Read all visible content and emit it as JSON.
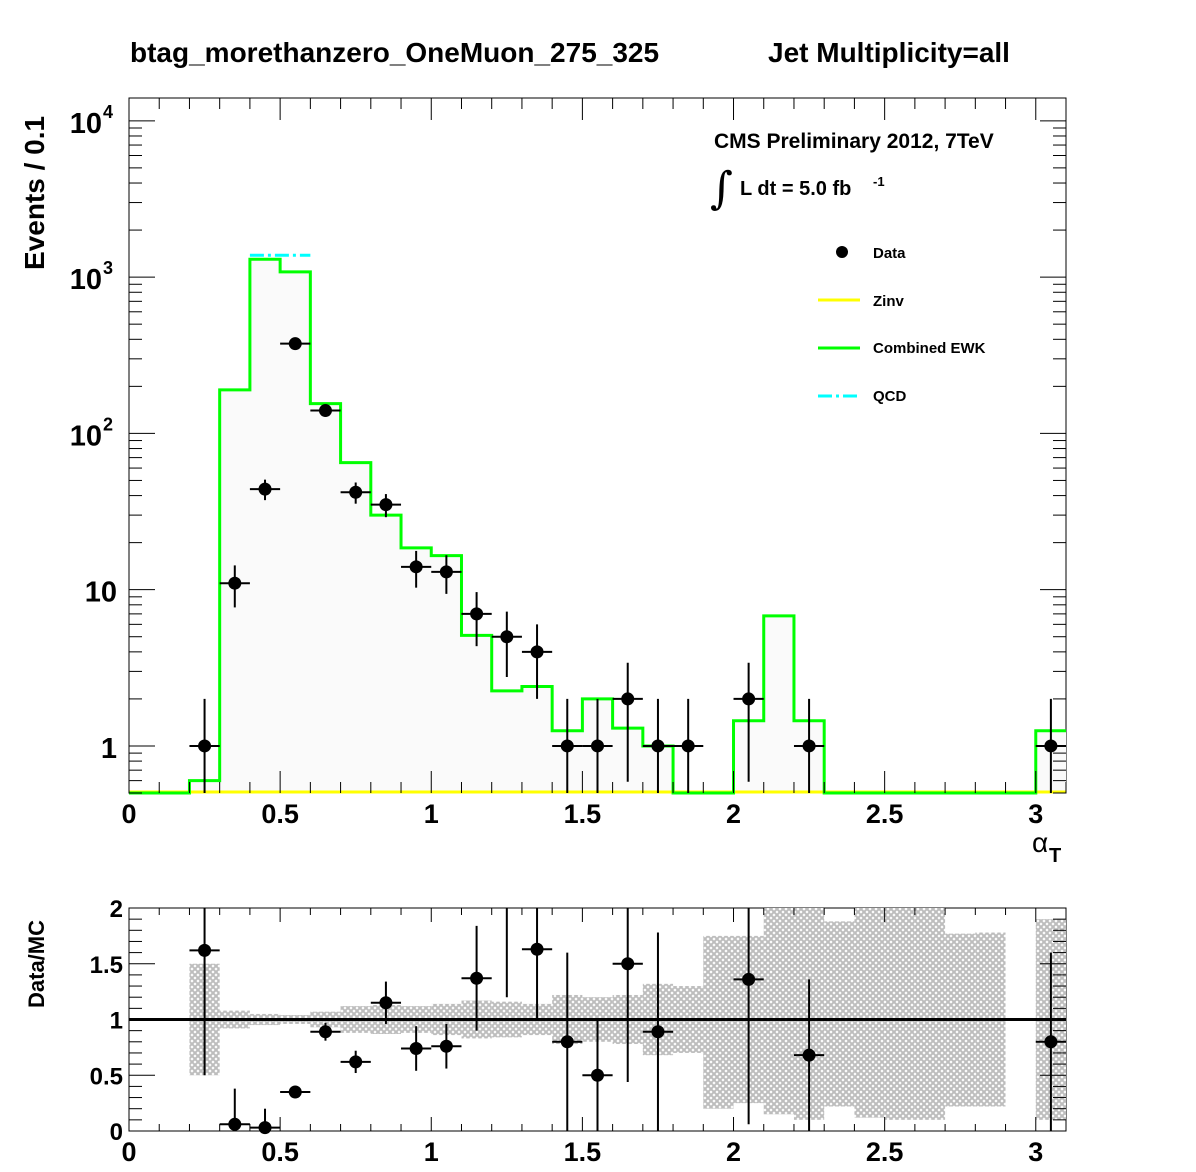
{
  "title": "btag_morethanzero_OneMuon_275_325",
  "subtitle": "Jet Multiplicity=all",
  "annotations": {
    "cms": "CMS Preliminary 2012, 7TeV",
    "lumi_integral": "∫",
    "lumi": "L dt = 5.0 fb",
    "lumi_exp": "-1"
  },
  "colors": {
    "zinv": "#ffff00",
    "ewk": "#00ff00",
    "qcd": "#00ffff",
    "data": "#000000",
    "band": "#bdbdbd"
  },
  "chart_data": [
    {
      "type": "histogram",
      "xlabel": "α",
      "xlabel_sub": "T",
      "ylabel": "Events / 0.1",
      "log_y": true,
      "xlim": [
        0,
        3.1
      ],
      "ylim": [
        0.5,
        14000
      ],
      "x_ticks": [
        "0",
        "0.5",
        "1",
        "1.5",
        "2",
        "2.5",
        "3"
      ],
      "y_ticks": [
        {
          "value": 1,
          "base": "1",
          "exp": ""
        },
        {
          "value": 10,
          "base": "10",
          "exp": ""
        },
        {
          "value": 100,
          "base": "10",
          "exp": "2"
        },
        {
          "value": 1000,
          "base": "10",
          "exp": "3"
        },
        {
          "value": 10000,
          "base": "10",
          "exp": "4"
        }
      ],
      "legend": {
        "placement": "top-right",
        "entries": [
          {
            "label": "Data",
            "style": "marker"
          },
          {
            "label": "Zinv",
            "style": "line",
            "color": "#ffff00"
          },
          {
            "label": "Combined EWK",
            "style": "line",
            "color": "#00ff00"
          },
          {
            "label": "QCD",
            "style": "dashdot",
            "color": "#00ffff"
          }
        ]
      },
      "bin_width": 0.1,
      "series": [
        {
          "name": "Combined EWK",
          "bin_edges_start": 0.0,
          "values": [
            0,
            0,
            0.6,
            190,
            1300,
            1080,
            155,
            65,
            30,
            18.5,
            16.5,
            5.1,
            2.25,
            2.4,
            1.25,
            2.0,
            1.3,
            1.0,
            0,
            0,
            1.45,
            6.8,
            1.45,
            0,
            0,
            0,
            0,
            0,
            0,
            0,
            1.25
          ]
        },
        {
          "name": "QCD",
          "bin_edges_start": 0.4,
          "values": [
            1380,
            1380
          ]
        },
        {
          "name": "Zinv",
          "bin_edges_start": 0.0,
          "values": [
            0
          ]
        }
      ],
      "data_points": [
        {
          "x": 0.25,
          "y": 1,
          "ylo": 0,
          "yhi": 2
        },
        {
          "x": 0.35,
          "y": 11,
          "ylo": 7.7,
          "yhi": 14.3
        },
        {
          "x": 0.45,
          "y": 44,
          "ylo": 37.4,
          "yhi": 50.6
        },
        {
          "x": 0.55,
          "y": 375,
          "ylo": 356,
          "yhi": 394
        },
        {
          "x": 0.65,
          "y": 140,
          "ylo": 128,
          "yhi": 152
        },
        {
          "x": 0.75,
          "y": 42,
          "ylo": 35.5,
          "yhi": 48.5
        },
        {
          "x": 0.85,
          "y": 35,
          "ylo": 29.1,
          "yhi": 40.9
        },
        {
          "x": 0.95,
          "y": 14,
          "ylo": 10.3,
          "yhi": 17.7
        },
        {
          "x": 1.05,
          "y": 13,
          "ylo": 9.4,
          "yhi": 16.6
        },
        {
          "x": 1.15,
          "y": 7,
          "ylo": 4.35,
          "yhi": 9.65
        },
        {
          "x": 1.25,
          "y": 5,
          "ylo": 2.76,
          "yhi": 7.24
        },
        {
          "x": 1.35,
          "y": 4,
          "ylo": 2,
          "yhi": 6
        },
        {
          "x": 1.45,
          "y": 1,
          "ylo": 0,
          "yhi": 2
        },
        {
          "x": 1.55,
          "y": 1,
          "ylo": 0,
          "yhi": 2
        },
        {
          "x": 1.65,
          "y": 2,
          "ylo": 0.59,
          "yhi": 3.41
        },
        {
          "x": 1.75,
          "y": 1,
          "ylo": 0,
          "yhi": 2
        },
        {
          "x": 1.85,
          "y": 1,
          "ylo": 0,
          "yhi": 2
        },
        {
          "x": 2.05,
          "y": 2,
          "ylo": 0.59,
          "yhi": 3.41
        },
        {
          "x": 2.25,
          "y": 1,
          "ylo": 0,
          "yhi": 2
        },
        {
          "x": 3.05,
          "y": 1,
          "ylo": 0,
          "yhi": 2
        }
      ]
    },
    {
      "type": "ratio",
      "ylabel": "Data/MC",
      "xlim": [
        0,
        3.1
      ],
      "ylim": [
        0,
        2
      ],
      "x_ticks": [
        "0",
        "0.5",
        "1",
        "1.5",
        "2",
        "2.5",
        "3"
      ],
      "y_ticks": [
        "0",
        "0.5",
        "1",
        "1.5",
        "2"
      ],
      "reference_line": 1,
      "uncertainty_band": [
        {
          "x0": 0.2,
          "x1": 0.3,
          "lo": 0.5,
          "hi": 1.5
        },
        {
          "x0": 0.3,
          "x1": 0.4,
          "lo": 0.92,
          "hi": 1.08
        },
        {
          "x0": 0.4,
          "x1": 0.5,
          "lo": 0.95,
          "hi": 1.05
        },
        {
          "x0": 0.5,
          "x1": 0.6,
          "lo": 0.96,
          "hi": 1.04
        },
        {
          "x0": 0.6,
          "x1": 0.7,
          "lo": 0.93,
          "hi": 1.07
        },
        {
          "x0": 0.7,
          "x1": 0.8,
          "lo": 0.88,
          "hi": 1.12
        },
        {
          "x0": 0.8,
          "x1": 0.9,
          "lo": 0.87,
          "hi": 1.13
        },
        {
          "x0": 0.9,
          "x1": 1.0,
          "lo": 0.88,
          "hi": 1.12
        },
        {
          "x0": 1.0,
          "x1": 1.1,
          "lo": 0.86,
          "hi": 1.14
        },
        {
          "x0": 1.1,
          "x1": 1.2,
          "lo": 0.83,
          "hi": 1.17
        },
        {
          "x0": 1.2,
          "x1": 1.3,
          "lo": 0.84,
          "hi": 1.16
        },
        {
          "x0": 1.3,
          "x1": 1.4,
          "lo": 0.86,
          "hi": 1.14
        },
        {
          "x0": 1.4,
          "x1": 1.5,
          "lo": 0.78,
          "hi": 1.22
        },
        {
          "x0": 1.5,
          "x1": 1.6,
          "lo": 0.8,
          "hi": 1.2
        },
        {
          "x0": 1.6,
          "x1": 1.7,
          "lo": 0.78,
          "hi": 1.22
        },
        {
          "x0": 1.7,
          "x1": 1.8,
          "lo": 0.68,
          "hi": 1.32
        },
        {
          "x0": 1.8,
          "x1": 1.9,
          "lo": 0.7,
          "hi": 1.3
        },
        {
          "x0": 1.9,
          "x1": 2.0,
          "lo": 0.2,
          "hi": 1.75
        },
        {
          "x0": 2.0,
          "x1": 2.1,
          "lo": 0.25,
          "hi": 1.75
        },
        {
          "x0": 2.1,
          "x1": 2.2,
          "lo": 0.15,
          "hi": 2.0
        },
        {
          "x0": 2.2,
          "x1": 2.3,
          "lo": 0.1,
          "hi": 2.0
        },
        {
          "x0": 2.3,
          "x1": 2.4,
          "lo": 0.22,
          "hi": 1.88
        },
        {
          "x0": 2.4,
          "x1": 2.5,
          "lo": 0.12,
          "hi": 2.0
        },
        {
          "x0": 2.5,
          "x1": 2.6,
          "lo": 0.1,
          "hi": 2.0
        },
        {
          "x0": 2.6,
          "x1": 2.7,
          "lo": 0.1,
          "hi": 2.0
        },
        {
          "x0": 2.7,
          "x1": 2.8,
          "lo": 0.22,
          "hi": 1.77
        },
        {
          "x0": 2.8,
          "x1": 2.9,
          "lo": 0.22,
          "hi": 1.78
        },
        {
          "x0": 3.0,
          "x1": 3.1,
          "lo": 0.1,
          "hi": 1.9
        }
      ],
      "data_points": [
        {
          "x": 0.25,
          "y": 1.62,
          "ylo": 0.5,
          "yhi": 2.0
        },
        {
          "x": 0.35,
          "y": 0.06,
          "ylo": 0.0,
          "yhi": 0.38
        },
        {
          "x": 0.45,
          "y": 0.03,
          "ylo": 0.0,
          "yhi": 0.2
        },
        {
          "x": 0.55,
          "y": 0.35,
          "ylo": 0.32,
          "yhi": 0.38
        },
        {
          "x": 0.65,
          "y": 0.89,
          "ylo": 0.81,
          "yhi": 0.97
        },
        {
          "x": 0.75,
          "y": 0.62,
          "ylo": 0.52,
          "yhi": 0.72
        },
        {
          "x": 0.85,
          "y": 1.15,
          "ylo": 0.96,
          "yhi": 1.34
        },
        {
          "x": 0.95,
          "y": 0.74,
          "ylo": 0.54,
          "yhi": 0.94
        },
        {
          "x": 1.05,
          "y": 0.76,
          "ylo": 0.56,
          "yhi": 0.96
        },
        {
          "x": 1.15,
          "y": 1.37,
          "ylo": 0.9,
          "yhi": 1.84
        },
        {
          "x": 1.25,
          "y": 2.2,
          "ylo": 1.2,
          "yhi": 3.2
        },
        {
          "x": 1.35,
          "y": 1.63,
          "ylo": 1.0,
          "yhi": 2.0
        },
        {
          "x": 1.45,
          "y": 0.8,
          "ylo": 0.0,
          "yhi": 1.6
        },
        {
          "x": 1.55,
          "y": 0.5,
          "ylo": 0.0,
          "yhi": 1.0
        },
        {
          "x": 1.65,
          "y": 1.5,
          "ylo": 0.44,
          "yhi": 2.0
        },
        {
          "x": 1.75,
          "y": 0.89,
          "ylo": 0.0,
          "yhi": 1.78
        },
        {
          "x": 2.05,
          "y": 1.36,
          "ylo": 0.06,
          "yhi": 2.0
        },
        {
          "x": 2.25,
          "y": 0.68,
          "ylo": 0.0,
          "yhi": 1.36
        },
        {
          "x": 3.05,
          "y": 0.8,
          "ylo": 0.0,
          "yhi": 1.6
        }
      ]
    }
  ]
}
